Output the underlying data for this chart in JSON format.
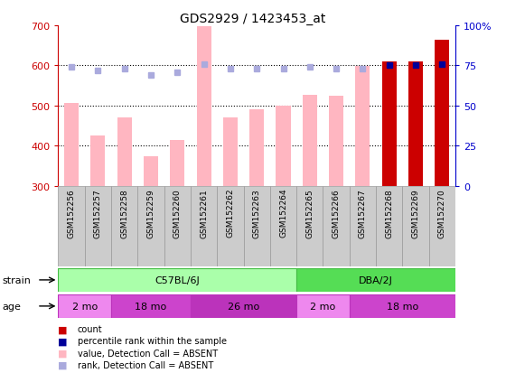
{
  "title": "GDS2929 / 1423453_at",
  "samples": [
    "GSM152256",
    "GSM152257",
    "GSM152258",
    "GSM152259",
    "GSM152260",
    "GSM152261",
    "GSM152262",
    "GSM152263",
    "GSM152264",
    "GSM152265",
    "GSM152266",
    "GSM152267",
    "GSM152268",
    "GSM152269",
    "GSM152270"
  ],
  "bar_values": [
    507,
    425,
    470,
    375,
    415,
    698,
    470,
    490,
    500,
    527,
    525,
    598,
    610,
    610,
    665
  ],
  "bar_absent": [
    true,
    true,
    true,
    true,
    true,
    true,
    true,
    true,
    true,
    true,
    true,
    true,
    false,
    false,
    false
  ],
  "rank_values": [
    74,
    72,
    73,
    69,
    71,
    76,
    73,
    73,
    73,
    74,
    73,
    73,
    75,
    75,
    76
  ],
  "rank_absent": [
    true,
    true,
    true,
    true,
    true,
    true,
    true,
    true,
    true,
    true,
    true,
    true,
    false,
    false,
    false
  ],
  "ylim_left": [
    300,
    700
  ],
  "ylim_right": [
    0,
    100
  ],
  "yticks_left": [
    300,
    400,
    500,
    600,
    700
  ],
  "yticks_right": [
    0,
    25,
    50,
    75,
    100
  ],
  "bar_color_absent": "#FFB6C1",
  "bar_color_present": "#CC0000",
  "rank_color_absent": "#AAAADD",
  "rank_color_present": "#000099",
  "left_axis_color": "#CC0000",
  "right_axis_color": "#0000CC",
  "strain_light_green": "#AAFFAA",
  "strain_dark_green": "#55DD55",
  "age_light_violet": "#EE88EE",
  "age_dark_violet": "#CC44CC",
  "sample_box_gray": "#CCCCCC",
  "sample_box_edge": "#999999"
}
